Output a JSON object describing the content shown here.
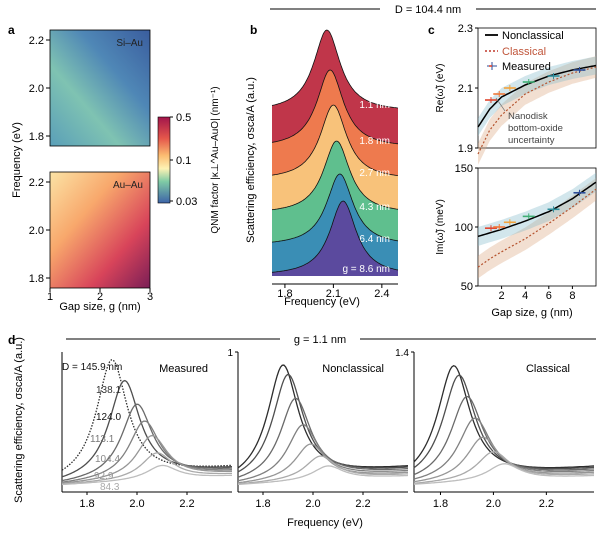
{
  "top_label": "D = 104.4 nm",
  "panel_d_top_label": "g = 1.1 nm",
  "colorbar": {
    "label": "QNM factor |κ⊥^Au–AuO| (nm⁻¹)",
    "ticks": [
      "0.5",
      "0.1",
      "0.03"
    ]
  },
  "chart_data": [
    {
      "panel": "a",
      "type": "heatmap",
      "maps": [
        {
          "label": "Si–Au",
          "yticks": [
            "2.2",
            "2.0",
            "1.8"
          ]
        },
        {
          "label": "Au–Au",
          "yticks": [
            "2.2",
            "2.0",
            "1.8"
          ]
        }
      ],
      "xlabel": "Gap size, g (nm)",
      "ylabel": "Frequency (eV)",
      "xticks": [
        "1",
        "2",
        "3"
      ],
      "xlim": [
        1,
        3
      ],
      "ylim": [
        1.8,
        2.2
      ]
    },
    {
      "panel": "b",
      "type": "area",
      "xlabel": "Frequency (eV)",
      "ylabel": "Scattering efficiency, σsca/A (a.u.)",
      "xticks": [
        "1.8",
        "2.1",
        "2.4"
      ],
      "xlim": [
        1.72,
        2.5
      ],
      "series": [
        {
          "name": "1.1 nm",
          "peak": 2.06,
          "color": "#c0364a"
        },
        {
          "name": "1.8 nm",
          "peak": 2.08,
          "color": "#ee7a4e"
        },
        {
          "name": "2.7 nm",
          "peak": 2.1,
          "color": "#f8c27a"
        },
        {
          "name": "4.3 nm",
          "peak": 2.12,
          "color": "#5fbf8e"
        },
        {
          "name": "6.4 nm",
          "peak": 2.14,
          "color": "#3a8eb5"
        },
        {
          "name": "g = 8.6 nm",
          "peak": 2.16,
          "color": "#5b4a9e"
        }
      ]
    },
    {
      "panel": "c",
      "type": "line",
      "legend": [
        "Nonclassical",
        "Classical",
        "Measured"
      ],
      "annotation": [
        "Nanodisk",
        "bottom-oxide",
        "uncertainty"
      ],
      "xlabel": "Gap size, g (nm)",
      "xticks": [
        "2",
        "4",
        "6",
        "8"
      ],
      "xlim": [
        0,
        10
      ],
      "top": {
        "ylabel": "Re(ω̃) (eV)",
        "yticks": [
          "2.3",
          "2.1",
          "1.9"
        ],
        "ylim": [
          1.9,
          2.3
        ],
        "nonclassical": [
          [
            0,
            1.97
          ],
          [
            1,
            2.03
          ],
          [
            2,
            2.07
          ],
          [
            4,
            2.11
          ],
          [
            6,
            2.14
          ],
          [
            8,
            2.16
          ],
          [
            10,
            2.175
          ]
        ],
        "classical": [
          [
            0,
            1.88
          ],
          [
            1,
            1.96
          ],
          [
            2,
            2.01
          ],
          [
            4,
            2.08
          ],
          [
            6,
            2.12
          ],
          [
            8,
            2.15
          ],
          [
            10,
            2.17
          ]
        ],
        "measured": [
          [
            1.1,
            2.06
          ],
          [
            1.8,
            2.08
          ],
          [
            2.7,
            2.1
          ],
          [
            4.3,
            2.12
          ],
          [
            6.4,
            2.14
          ],
          [
            8.6,
            2.16
          ]
        ]
      },
      "bottom": {
        "ylabel": "Im(ω̃) (meV)",
        "yticks": [
          "150",
          "100",
          "50"
        ],
        "ylim": [
          50,
          150
        ],
        "nonclassical": [
          [
            0,
            92
          ],
          [
            1,
            95
          ],
          [
            2,
            98
          ],
          [
            4,
            105
          ],
          [
            6,
            113
          ],
          [
            8,
            124
          ],
          [
            10,
            138
          ]
        ],
        "classical": [
          [
            0,
            66
          ],
          [
            1,
            73
          ],
          [
            2,
            79
          ],
          [
            4,
            90
          ],
          [
            6,
            103
          ],
          [
            8,
            117
          ],
          [
            10,
            132
          ]
        ],
        "measured": [
          [
            1.1,
            99
          ],
          [
            1.8,
            100
          ],
          [
            2.7,
            104
          ],
          [
            4.3,
            109
          ],
          [
            6.4,
            115
          ],
          [
            8.6,
            129
          ]
        ]
      }
    },
    {
      "panel": "d",
      "type": "line",
      "ylabel": "Scattering efficiency, σsca/A (a.u.)",
      "xlabel": "Frequency (eV)",
      "xticks": [
        "1.8",
        "2.0",
        "2.2"
      ],
      "xlim": [
        1.7,
        2.38
      ],
      "subplots": [
        {
          "title": "Measured",
          "ytop": ""
        },
        {
          "title": "Nonclassical",
          "ytop": "1"
        },
        {
          "title": "Classical",
          "ytop": "1.4"
        }
      ],
      "diameters": [
        "D = 145.9 nm",
        "138.1",
        "124.0",
        "113.1",
        "104.4",
        "92.9",
        "84.3"
      ],
      "measured": [
        {
          "peak": 1.9,
          "amp": 1.0
        },
        {
          "peak": 1.95,
          "amp": 0.82
        },
        {
          "peak": 2.0,
          "amp": 0.62
        },
        {
          "peak": 2.03,
          "amp": 0.48
        },
        {
          "peak": 2.06,
          "amp": 0.36
        },
        {
          "peak": 2.08,
          "amp": 0.22
        },
        {
          "peak": 2.1,
          "amp": 0.12
        }
      ],
      "nonclassical": [
        {
          "peak": 1.88,
          "amp": 0.96
        },
        {
          "peak": 1.9,
          "amp": 0.88
        },
        {
          "peak": 1.93,
          "amp": 0.68
        },
        {
          "peak": 1.96,
          "amp": 0.46
        },
        {
          "peak": 1.99,
          "amp": 0.3
        },
        {
          "peak": 2.03,
          "amp": 0.2
        },
        {
          "peak": 2.06,
          "amp": 0.12
        }
      ],
      "classical": [
        {
          "peak": 1.85,
          "amp": 0.96
        },
        {
          "peak": 1.87,
          "amp": 0.88
        },
        {
          "peak": 1.9,
          "amp": 0.7
        },
        {
          "peak": 1.93,
          "amp": 0.52
        },
        {
          "peak": 1.96,
          "amp": 0.36
        },
        {
          "peak": 2.0,
          "amp": 0.24
        },
        {
          "peak": 2.04,
          "amp": 0.14
        }
      ]
    }
  ]
}
